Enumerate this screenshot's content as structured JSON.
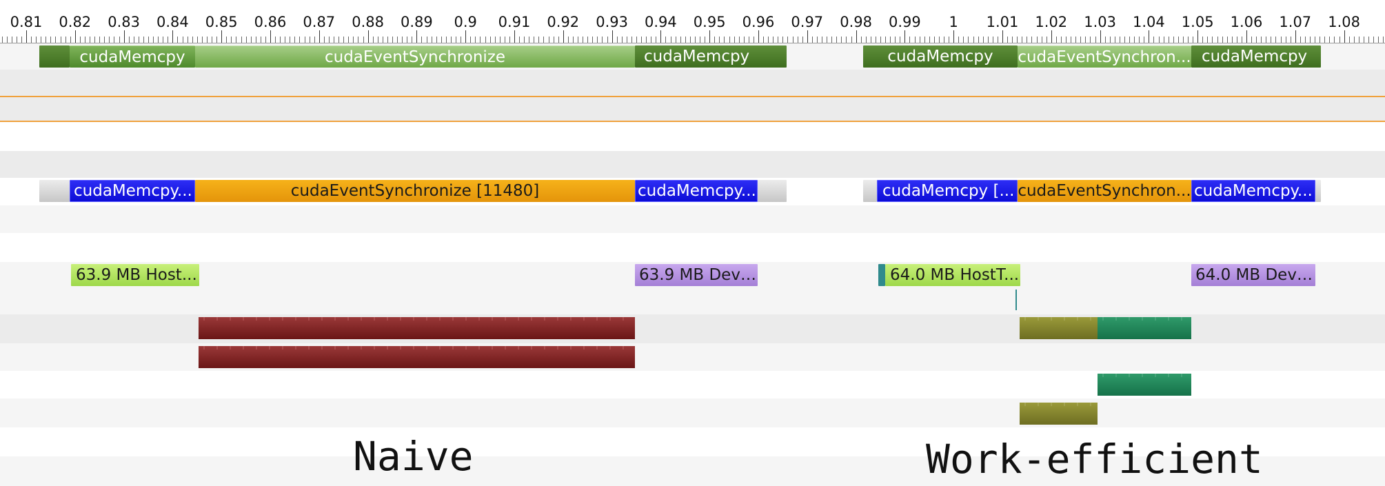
{
  "timeline": {
    "ticks": [
      "0.81",
      "0.82",
      "0.83",
      "0.84",
      "0.85",
      "0.86",
      "0.87",
      "0.88",
      "0.89",
      "0.9",
      "0.91",
      "0.92",
      "0.93",
      "0.94",
      "0.95",
      "0.96",
      "0.97",
      "0.98",
      "0.99",
      "1",
      "1.01",
      "1.02",
      "1.03",
      "1.04",
      "1.05",
      "1.06",
      "1.07",
      "1.08",
      "1"
    ]
  },
  "runtime_api_row": {
    "naive": [
      "cudaMemcpy",
      "cudaEventSynchronize",
      "cudaMemcpy"
    ],
    "work_efficient": [
      "cudaMemcpy",
      "cudaEventSynchron...",
      "cudaMemcpy"
    ]
  },
  "cuda_api_row": {
    "naive": [
      "cudaMemcpy...",
      "cudaEventSynchronize [11480]",
      "cudaMemcpy..."
    ],
    "work_efficient": [
      "cudaMemcpy [...",
      "cudaEventSynchron...",
      "cudaMemcpy..."
    ]
  },
  "memory_row": {
    "naive": [
      "63.9 MB Host...",
      "63.9 MB Devi..."
    ],
    "work_efficient": [
      "64.0 MB HostT...",
      "64.0 MB Devi..."
    ]
  },
  "annotations": {
    "naive": "Naive",
    "work_efficient": "Work-efficient"
  },
  "colors": {
    "api_green": "#5e9a3a",
    "cuda_blue": "#1414e6",
    "sync_orange": "#f0a21a",
    "htod_lime": "#b2e25f",
    "dtoh_purple": "#b793e2",
    "naive_kernel": "#7e2424",
    "we_kernel_olive": "#86862e",
    "we_kernel_green": "#228558",
    "marker_orange": "#f0a13c"
  }
}
